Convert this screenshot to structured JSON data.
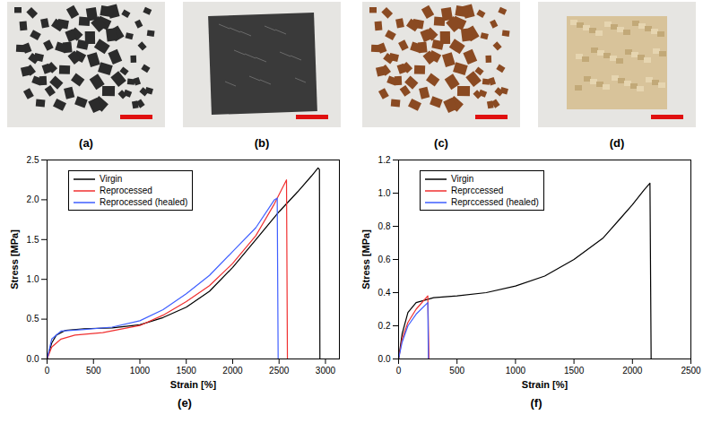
{
  "photos": [
    {
      "label": "(a)"
    },
    {
      "label": "(b)"
    },
    {
      "label": "(c)"
    },
    {
      "label": "(d)"
    }
  ],
  "chart_data": [
    {
      "type": "line",
      "panel_label": "(e)",
      "x_label": "Strain [%]",
      "y_label": "Stress [MPa]",
      "xlim": [
        0,
        3150
      ],
      "xticks": [
        0,
        500,
        1000,
        1500,
        2000,
        2500,
        3000
      ],
      "ylim": [
        0,
        2.5
      ],
      "yticks": [
        {
          "value": 0,
          "label": "0.0"
        },
        0.5,
        {
          "value": 1,
          "label": "1.0"
        },
        1.5,
        {
          "value": 2,
          "label": "2.0"
        },
        2.5
      ],
      "legend": "upper left",
      "grid": false,
      "series": [
        {
          "name": "Virgin",
          "color": "#000000",
          "x": [
            0,
            50,
            100,
            200,
            400,
            700,
            1000,
            1250,
            1500,
            1750,
            2000,
            2250,
            2500,
            2700,
            2850,
            2920,
            2935,
            2940
          ],
          "values": [
            0,
            0.2,
            0.3,
            0.36,
            0.38,
            0.39,
            0.43,
            0.52,
            0.65,
            0.85,
            1.15,
            1.5,
            1.85,
            2.1,
            2.3,
            2.4,
            2.38,
            0
          ]
        },
        {
          "name": "Reprocessed",
          "color": "#f03030",
          "x": [
            0,
            50,
            150,
            300,
            600,
            1000,
            1250,
            1500,
            1750,
            2000,
            2250,
            2450,
            2580,
            2590
          ],
          "values": [
            0,
            0.15,
            0.25,
            0.3,
            0.33,
            0.42,
            0.55,
            0.72,
            0.92,
            1.2,
            1.55,
            1.95,
            2.25,
            0
          ]
        },
        {
          "name": "Reprocessed (healed)",
          "color": "#3f5fff",
          "x": [
            0,
            50,
            150,
            400,
            700,
            1000,
            1250,
            1500,
            1750,
            2000,
            2250,
            2450,
            2480,
            2490
          ],
          "values": [
            0,
            0.25,
            0.35,
            0.37,
            0.4,
            0.48,
            0.62,
            0.82,
            1.05,
            1.35,
            1.65,
            2.0,
            2.02,
            0
          ]
        }
      ]
    },
    {
      "type": "line",
      "panel_label": "(f)",
      "x_label": "Strain [%]",
      "y_label": "Stress [MPa]",
      "xlim": [
        0,
        2500
      ],
      "xticks": [
        0,
        500,
        1000,
        1500,
        2000,
        2500
      ],
      "ylim": [
        0,
        1.2
      ],
      "yticks": [
        {
          "value": 0,
          "label": "0.0"
        },
        0.2,
        0.4,
        0.6,
        0.8,
        {
          "value": 1,
          "label": "1.0"
        },
        1.2
      ],
      "legend": "upper left",
      "grid": false,
      "series": [
        {
          "name": "Virgin",
          "color": "#000000",
          "x": [
            0,
            30,
            80,
            150,
            300,
            500,
            750,
            1000,
            1250,
            1500,
            1750,
            1900,
            2000,
            2100,
            2150,
            2160
          ],
          "values": [
            0,
            0.15,
            0.28,
            0.34,
            0.37,
            0.38,
            0.4,
            0.44,
            0.5,
            0.6,
            0.73,
            0.85,
            0.93,
            1.02,
            1.06,
            0
          ]
        },
        {
          "name": "Reprccessed",
          "color": "#f03030",
          "x": [
            0,
            30,
            80,
            150,
            250,
            260
          ],
          "values": [
            0,
            0.12,
            0.22,
            0.3,
            0.38,
            0
          ]
        },
        {
          "name": "Reprccessed (healed)",
          "color": "#3f5fff",
          "x": [
            0,
            30,
            80,
            150,
            250,
            255
          ],
          "values": [
            0,
            0.1,
            0.2,
            0.27,
            0.34,
            0
          ]
        }
      ]
    }
  ]
}
